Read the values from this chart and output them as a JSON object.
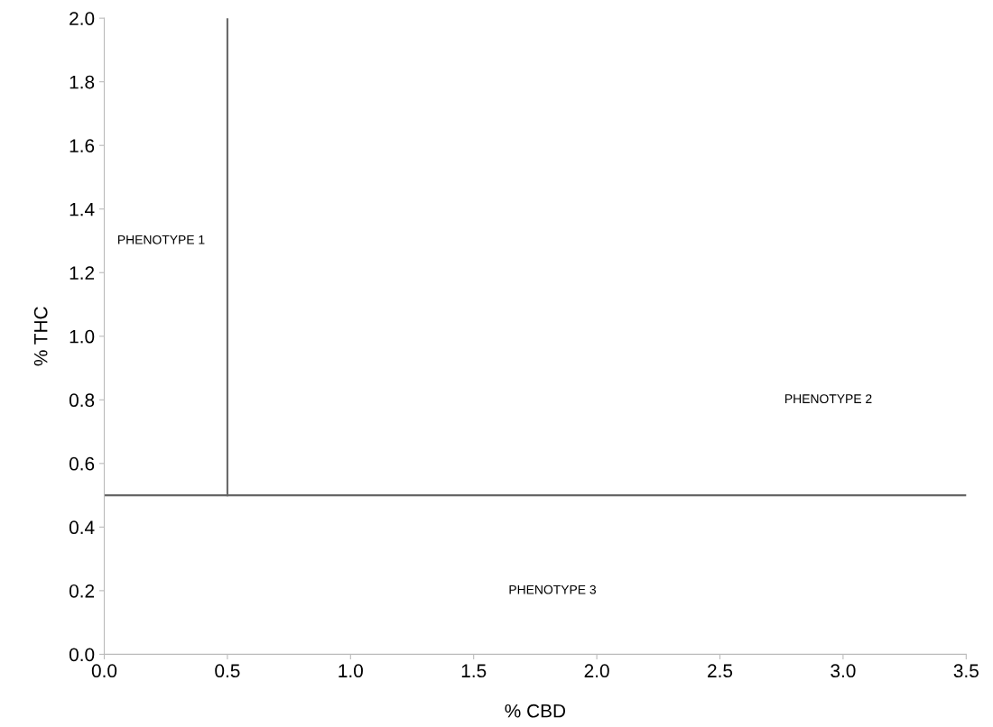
{
  "chart_data": {
    "type": "line",
    "xlabel": "% CBD",
    "ylabel": "% THC",
    "series": [
      {
        "color": "#666666",
        "x": [
          0.5,
          0.5
        ],
        "values": [
          0.5,
          2.0
        ]
      },
      {
        "color": "#666666",
        "x": [
          0.0,
          3.5
        ],
        "values": [
          0.5,
          0.5
        ]
      }
    ],
    "xlim": [
      0,
      3.5
    ],
    "ylim": [
      0,
      2.0
    ],
    "xticks": [
      {
        "value": 0,
        "label": "0.0"
      },
      0.5,
      {
        "value": 1,
        "label": "1.0"
      },
      1.5,
      {
        "value": 2,
        "label": "2.0"
      },
      2.5,
      {
        "value": 3,
        "label": "3.0"
      },
      3.5
    ],
    "yticks": [
      {
        "value": 0,
        "label": "0.0"
      },
      0.2,
      0.4,
      0.6,
      0.8,
      {
        "value": 1,
        "label": "1.0"
      },
      1.2,
      1.4,
      1.6,
      1.8,
      {
        "value": 2,
        "label": "2.0"
      }
    ],
    "annotations": [
      "PHENOTYPE 1",
      "PHENOTYPE 2",
      "PHENOTYPE 3"
    ],
    "grid": false,
    "legend": false,
    "marker": "none",
    "line_style": "solid"
  }
}
